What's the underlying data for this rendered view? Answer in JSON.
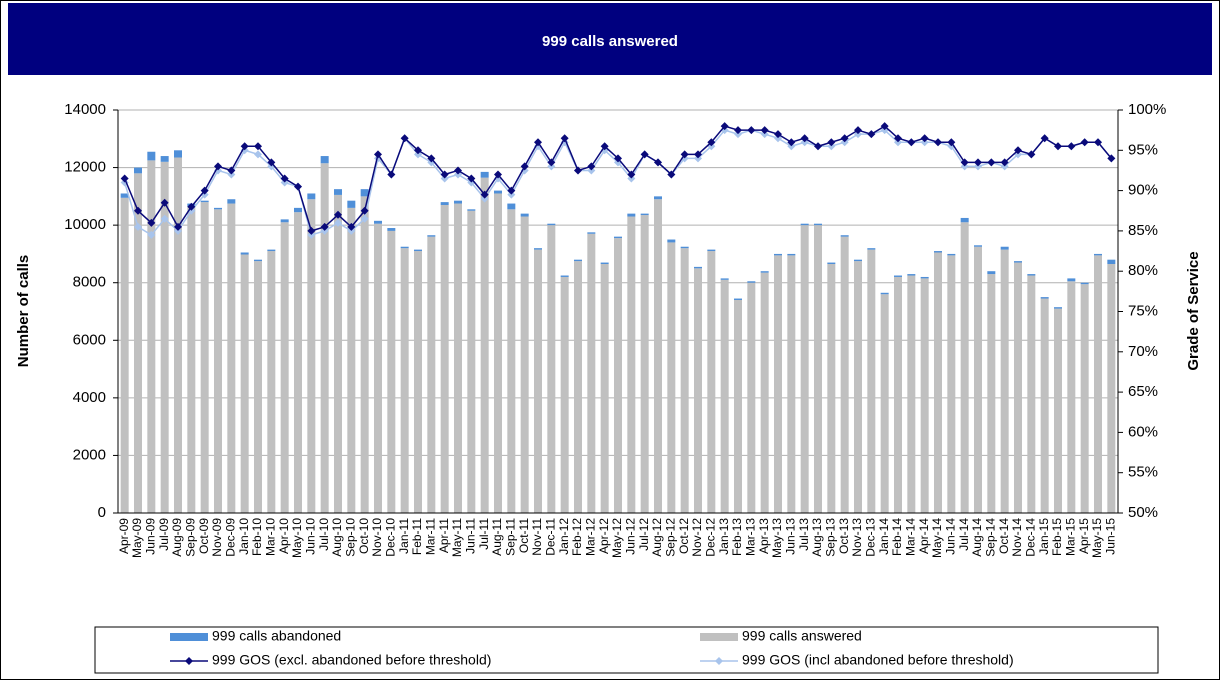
{
  "chart_data": {
    "type": "bar",
    "stacked": true,
    "title": "999 calls answered",
    "ylabel": "Number of calls",
    "y2label": "Grade of Service",
    "categories": [
      "Apr-09",
      "May-09",
      "Jun-09",
      "Jul-09",
      "Aug-09",
      "Sep-09",
      "Oct-09",
      "Nov-09",
      "Dec-09",
      "Jan-10",
      "Feb-10",
      "Mar-10",
      "Apr-10",
      "May-10",
      "Jun-10",
      "Jul-10",
      "Aug-10",
      "Sep-10",
      "Oct-10",
      "Nov-10",
      "Dec-10",
      "Jan-11",
      "Feb-11",
      "Mar-11",
      "Apr-11",
      "May-11",
      "Jun-11",
      "Jul-11",
      "Aug-11",
      "Sep-11",
      "Oct-11",
      "Nov-11",
      "Dec-11",
      "Jan-12",
      "Feb-12",
      "Mar-12",
      "Apr-12",
      "May-12",
      "Jun-12",
      "Jul-12",
      "Aug-12",
      "Sep-12",
      "Oct-12",
      "Nov-12",
      "Dec-12",
      "Jan-13",
      "Feb-13",
      "Mar-13",
      "Apr-13",
      "May-13",
      "Jun-13",
      "Jul-13",
      "Aug-13",
      "Sep-13",
      "Oct-13",
      "Nov-13",
      "Dec-13",
      "Jan-14",
      "Feb-14",
      "Mar-14",
      "Apr-14",
      "May-14",
      "Jun-14",
      "Jul-14",
      "Aug-14",
      "Sep-14",
      "Oct-14",
      "Nov-14",
      "Dec-14",
      "Jan-15",
      "Feb-15",
      "Mar-15",
      "Apr-15",
      "May-15",
      "Jun-15"
    ],
    "series": [
      {
        "name": "999 calls answered",
        "color": "#c0c0c0",
        "values": [
          10950,
          11800,
          12250,
          12200,
          12350,
          10650,
          10800,
          10550,
          10750,
          8980,
          8750,
          9100,
          10100,
          10450,
          10900,
          12150,
          11050,
          10600,
          11000,
          10050,
          9800,
          9200,
          9100,
          9600,
          10700,
          10750,
          10500,
          11650,
          11100,
          10550,
          10300,
          9150,
          10000,
          8200,
          8750,
          9700,
          8650,
          9550,
          10300,
          10350,
          10900,
          9400,
          9200,
          8500,
          9100,
          8100,
          7400,
          8000,
          8350,
          8950,
          8950,
          10000,
          10000,
          8650,
          9600,
          8750,
          9150,
          7600,
          8200,
          8250,
          8150,
          9050,
          8950,
          10100,
          9250,
          8300,
          9150,
          8700,
          8250,
          7450,
          7100,
          8050,
          7950,
          8950,
          8650
        ]
      },
      {
        "name": "999 calls abandoned",
        "color": "#4f8fd8",
        "values": [
          150,
          200,
          300,
          200,
          250,
          100,
          50,
          50,
          150,
          70,
          50,
          50,
          100,
          150,
          200,
          250,
          200,
          250,
          250,
          100,
          100,
          50,
          50,
          50,
          100,
          100,
          50,
          200,
          100,
          200,
          100,
          50,
          50,
          50,
          50,
          50,
          50,
          50,
          100,
          50,
          100,
          100,
          50,
          50,
          50,
          50,
          50,
          50,
          50,
          50,
          50,
          50,
          50,
          50,
          50,
          50,
          50,
          50,
          50,
          50,
          50,
          50,
          50,
          150,
          50,
          100,
          100,
          50,
          50,
          50,
          50,
          100,
          50,
          50,
          150
        ]
      },
      {
        "name": "999 GOS (excl. abandoned before threshold)",
        "color": "#0a0a7a",
        "axis": "y2",
        "values": [
          91.5,
          87.5,
          86,
          88.5,
          85.5,
          88,
          90,
          93,
          92.5,
          95.5,
          95.5,
          93.5,
          91.5,
          90.5,
          85,
          85.5,
          87,
          85.5,
          87.5,
          94.5,
          92,
          96.5,
          95,
          94,
          92,
          92.5,
          91.5,
          89.5,
          92,
          90,
          93,
          96,
          93.5,
          96.5,
          92.5,
          93,
          95.5,
          94,
          92,
          94.5,
          93.5,
          92,
          94.5,
          94.5,
          96,
          98,
          97.5,
          97.5,
          97.5,
          97,
          96,
          96.5,
          95.5,
          96,
          96.5,
          97.5,
          97,
          98,
          96.5,
          96,
          96.5,
          96,
          96,
          93.5,
          93.5,
          93.5,
          93.5,
          95,
          94.5,
          96.5,
          95.5,
          95.5,
          96,
          96,
          94
        ]
      },
      {
        "name": "999 GOS (incl abandoned before threshold)",
        "color": "#a8c4ec",
        "axis": "y2",
        "values": [
          91,
          85.5,
          84.5,
          86.5,
          85,
          87.5,
          89.5,
          92.5,
          92,
          95,
          94.5,
          93,
          91,
          90.5,
          84.5,
          85,
          86,
          85,
          86.5,
          94,
          92,
          96.5,
          94.5,
          93.5,
          91.5,
          92,
          91,
          89,
          91.5,
          89.5,
          92.5,
          95.5,
          93,
          96,
          92.5,
          92.5,
          95,
          93.5,
          91.5,
          94.5,
          93.5,
          92,
          94,
          94,
          95.5,
          97.5,
          97,
          97.5,
          97,
          96.5,
          95.5,
          96,
          95.5,
          95.5,
          96,
          97,
          97,
          97.5,
          96,
          96,
          96,
          96,
          95.5,
          93,
          93,
          93.5,
          93,
          94.5,
          94.5,
          96.5,
          95.5,
          95.5,
          96,
          96,
          94
        ]
      }
    ],
    "ylim": [
      0,
      14000
    ],
    "yticks": [
      0,
      2000,
      4000,
      6000,
      8000,
      10000,
      12000,
      14000
    ],
    "y2lim": [
      50,
      100
    ],
    "y2ticks": [
      {
        "value": 50,
        "label": "50%"
      },
      {
        "value": 55,
        "label": "55%"
      },
      {
        "value": 60,
        "label": "60%"
      },
      {
        "value": 65,
        "label": "65%"
      },
      {
        "value": 70,
        "label": "70%"
      },
      {
        "value": 75,
        "label": "75%"
      },
      {
        "value": 80,
        "label": "80%"
      },
      {
        "value": 85,
        "label": "85%"
      },
      {
        "value": 90,
        "label": "90%"
      },
      {
        "value": 95,
        "label": "95%"
      },
      {
        "value": 100,
        "label": "100%"
      }
    ],
    "grid": true,
    "legend": "bottom"
  }
}
